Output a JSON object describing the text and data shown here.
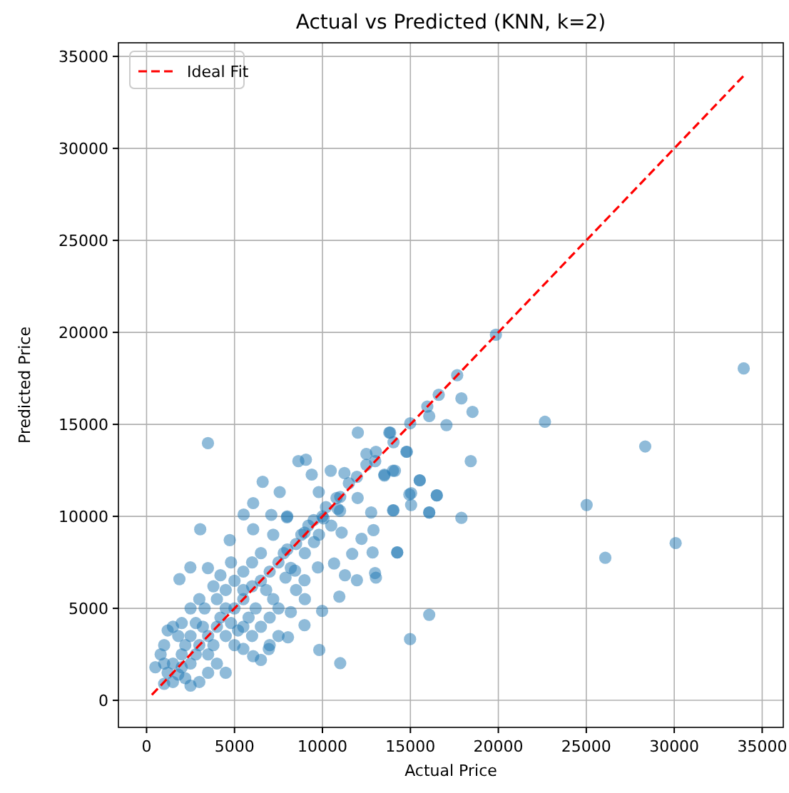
{
  "chart_data": {
    "type": "scatter",
    "title": "Actual vs Predicted (KNN, k=2)",
    "xlabel": "Actual Price",
    "ylabel": "Predicted Price",
    "xlim": [
      -1600,
      36200
    ],
    "ylim": [
      -1470,
      35740
    ],
    "xticks": [
      0,
      5000,
      10000,
      15000,
      20000,
      25000,
      30000,
      35000
    ],
    "yticks": [
      0,
      5000,
      10000,
      15000,
      20000,
      25000,
      30000,
      35000
    ],
    "grid": true,
    "legend": "top left",
    "series": [
      {
        "marker": "circle",
        "color": "#1f77b4",
        "x": [
          33950,
          22650,
          28350,
          25020,
          30080,
          26080,
          19860,
          17660,
          15960,
          17900,
          18530,
          16610,
          16070,
          17050,
          14990,
          18430,
          14770,
          13520,
          14010,
          15530,
          15040,
          16500,
          15040,
          16070,
          17900,
          14010,
          14250,
          13040,
          16070,
          14980,
          13850,
          13040,
          3490,
          3050,
          1870,
          2490,
          3490,
          4730,
          5520,
          6060,
          6060,
          6600,
          7570,
          7090,
          7980,
          8630,
          9060,
          9390,
          10470,
          11250,
          12010,
          12500,
          13800,
          14040,
          14800,
          13520,
          14120,
          15530,
          14940,
          16500,
          14040,
          16070,
          12770,
          11960,
          11010,
          9790,
          10870,
          10060,
          8980,
          9520,
          11090,
          12220,
          12900,
          11690,
          12850,
          14250,
          12990,
          11960,
          11280,
          10660,
          9740,
          8980,
          8440,
          7900,
          10960,
          9980,
          8980,
          8040,
          6950,
          6060,
          9820,
          11010,
          1000,
          1200,
          1500,
          1500,
          1800,
          2000,
          2000,
          2200,
          2500,
          2500,
          2800,
          3000,
          3200,
          3500,
          3500,
          3800,
          4000,
          4000,
          4200,
          4500,
          4500,
          4800,
          5000,
          5200,
          5500,
          5500,
          5800,
          6000,
          6200,
          6500,
          6800,
          7000,
          7200,
          7500,
          7800,
          8000,
          8200,
          8500,
          8800,
          9000,
          9200,
          9500,
          9800,
          10000,
          10200,
          10500,
          10800,
          11000,
          11500,
          12000,
          12500,
          13000,
          500,
          800,
          1000,
          1200,
          1500,
          1800,
          2000,
          2200,
          2500,
          3000,
          3500,
          1000,
          2800,
          3300,
          4000,
          4500,
          5000,
          3000,
          5000,
          5500,
          6000,
          6500,
          7000,
          7000,
          7500,
          6000,
          6500,
          5500,
          4800,
          4200,
          2500,
          3800,
          7200,
          8000,
          8500,
          9000,
          7500,
          8200,
          6500,
          4500,
          5500
        ],
        "values": [
          18040,
          15140,
          13800,
          10620,
          8550,
          7750,
          19870,
          17670,
          15970,
          16410,
          15680,
          16610,
          15450,
          14960,
          15060,
          13000,
          13510,
          12220,
          12480,
          11960,
          11260,
          11140,
          10620,
          10210,
          9920,
          10330,
          8040,
          6670,
          4650,
          3330,
          14550,
          13510,
          13980,
          9300,
          6590,
          7230,
          7190,
          8710,
          10100,
          10720,
          9300,
          11880,
          11320,
          10080,
          9950,
          13000,
          13080,
          12270,
          12480,
          12350,
          14550,
          13390,
          14550,
          14030,
          13510,
          12270,
          12480,
          11960,
          11190,
          11140,
          10330,
          10210,
          10210,
          12150,
          11060,
          11320,
          10410,
          9890,
          9120,
          8600,
          9120,
          8780,
          9250,
          7960,
          8040,
          8040,
          6920,
          6530,
          6800,
          7440,
          7230,
          6530,
          7050,
          6670,
          5640,
          4860,
          4090,
          3430,
          2790,
          2400,
          2740,
          2020,
          900,
          1500,
          1000,
          2000,
          1400,
          2500,
          1800,
          3000,
          2000,
          3500,
          2500,
          3000,
          4000,
          2500,
          3500,
          3000,
          4000,
          2000,
          4500,
          3500,
          5000,
          4200,
          5000,
          3800,
          5500,
          6000,
          4500,
          6200,
          5000,
          6500,
          6000,
          7000,
          5500,
          7500,
          8000,
          8200,
          7200,
          8500,
          9000,
          8000,
          9500,
          9800,
          9000,
          10000,
          10500,
          9500,
          11000,
          10300,
          11800,
          11000,
          12800,
          13000,
          1800,
          2500,
          3000,
          3800,
          4000,
          3500,
          4200,
          1200,
          800,
          1000,
          1500,
          2000,
          4200,
          5000,
          5500,
          6000,
          6500,
          5500,
          3000,
          2800,
          3500,
          4000,
          4500,
          3000,
          5000,
          7500,
          8000,
          7000,
          7500,
          6800,
          5000,
          6200,
          9000,
          10000,
          6000,
          5500,
          3500,
          4800,
          2200,
          1500,
          4000
        ]
      },
      {
        "type": "line",
        "name": "Ideal Fit",
        "color": "#ff0000",
        "line_style": "dashed",
        "marker": "none",
        "x": [
          300,
          33950
        ],
        "values": [
          300,
          33950
        ]
      }
    ]
  }
}
